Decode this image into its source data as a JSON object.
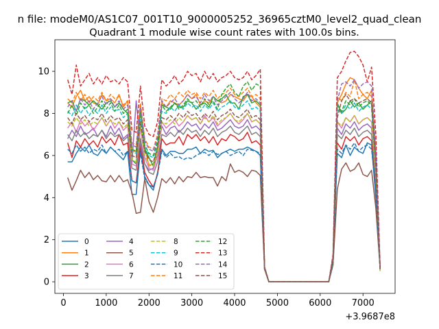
{
  "chart_data": {
    "type": "line",
    "suptitle": "n file: modeM0/AS1C07_001T10_9000005252_36965cztM0_level2_quad_clean",
    "title": "Quadrant 1 module wise count rates with 100.0s bins.",
    "xlabel": "",
    "ylabel": "",
    "x_offset_label": "+3.9687e8",
    "xlim": [
      -200,
      7750
    ],
    "ylim": [
      -0.55,
      11.5
    ],
    "x_ticks": [
      0,
      1000,
      2000,
      3000,
      4000,
      5000,
      6000,
      7000
    ],
    "y_ticks": [
      0,
      2,
      4,
      6,
      8,
      10
    ],
    "x_tick_labels": [
      "0",
      "1000",
      "2000",
      "3000",
      "4000",
      "5000",
      "6000",
      "7000"
    ],
    "y_tick_labels": [
      "0",
      "2",
      "4",
      "6",
      "8",
      "10"
    ],
    "legend_position": "lower-left",
    "legend_columns": 4,
    "x": [
      100,
      200,
      300,
      400,
      500,
      600,
      700,
      800,
      900,
      1000,
      1100,
      1200,
      1300,
      1400,
      1500,
      1600,
      1700,
      1800,
      1900,
      2000,
      2100,
      2200,
      2300,
      2400,
      2500,
      2600,
      2700,
      2800,
      2900,
      3000,
      3100,
      3200,
      3300,
      3400,
      3500,
      3600,
      3700,
      3800,
      3900,
      4000,
      4100,
      4200,
      4300,
      4400,
      4500,
      4600,
      4700,
      4800,
      6200,
      6300,
      6400,
      6500,
      6600,
      6700,
      6800,
      6900,
      7000,
      7100,
      7200,
      7300,
      7400
    ],
    "series": [
      {
        "name": "0",
        "color": "#1f77b4",
        "dash": "solid",
        "values": [
          5.7,
          5.7,
          6.1,
          6.4,
          6.2,
          6.5,
          6.1,
          6.0,
          6.3,
          6.1,
          6.4,
          6.2,
          6.0,
          5.8,
          6.2,
          4.15,
          4.15,
          6.3,
          5.0,
          4.6,
          4.35,
          5.2,
          6.3,
          6.0,
          6.2,
          6.2,
          6.1,
          6.1,
          6.3,
          6.3,
          6.4,
          6.1,
          6.3,
          6.2,
          6.25,
          5.9,
          6.1,
          6.2,
          6.3,
          6.2,
          6.3,
          6.3,
          6.4,
          6.3,
          6.2,
          6.0,
          0.6,
          0.0,
          0.0,
          1.0,
          6.1,
          5.9,
          6.5,
          6.0,
          6.4,
          6.2,
          6.1,
          6.6,
          6.5,
          4.0,
          0.6
        ]
      },
      {
        "name": "1",
        "color": "#ff7f0e",
        "dash": "solid",
        "values": [
          8.5,
          8.3,
          8.8,
          9.1,
          8.6,
          8.8,
          8.5,
          8.4,
          8.9,
          8.6,
          8.7,
          8.5,
          8.9,
          8.3,
          8.6,
          6.2,
          6.2,
          8.4,
          6.4,
          5.5,
          5.6,
          6.3,
          8.5,
          8.3,
          8.6,
          8.5,
          8.4,
          8.6,
          8.9,
          8.7,
          8.9,
          8.4,
          8.6,
          8.5,
          8.8,
          8.6,
          8.5,
          8.6,
          8.9,
          8.8,
          8.7,
          8.6,
          8.9,
          8.8,
          8.5,
          8.3,
          0.7,
          0.0,
          0.0,
          1.2,
          8.5,
          8.9,
          9.4,
          9.7,
          9.6,
          9.2,
          8.9,
          8.7,
          9.1,
          6.0,
          0.7
        ]
      },
      {
        "name": "2",
        "color": "#2ca02c",
        "dash": "solid",
        "values": [
          8.5,
          8.6,
          8.1,
          8.7,
          8.6,
          8.4,
          8.6,
          8.4,
          8.2,
          8.5,
          8.6,
          8.3,
          8.5,
          8.2,
          8.0,
          5.8,
          5.6,
          8.2,
          6.3,
          5.9,
          5.5,
          6.4,
          8.4,
          8.3,
          8.2,
          8.5,
          8.3,
          8.3,
          8.6,
          8.5,
          8.2,
          8.4,
          8.5,
          8.3,
          8.8,
          8.6,
          8.7,
          8.9,
          8.5,
          8.5,
          8.2,
          8.8,
          8.9,
          8.5,
          8.6,
          8.4,
          0.6,
          0.0,
          0.0,
          1.0,
          8.5,
          8.0,
          8.2,
          8.6,
          8.3,
          8.5,
          8.2,
          8.4,
          8.6,
          5.5,
          0.6
        ]
      },
      {
        "name": "3",
        "color": "#d62728",
        "dash": "solid",
        "values": [
          6.6,
          5.9,
          6.7,
          6.4,
          6.8,
          6.5,
          6.7,
          6.4,
          6.9,
          6.6,
          6.8,
          6.5,
          7.0,
          6.5,
          6.6,
          4.8,
          4.7,
          6.5,
          5.2,
          4.8,
          4.5,
          5.1,
          6.8,
          6.5,
          6.6,
          6.6,
          6.9,
          6.5,
          7.0,
          6.8,
          7.0,
          6.7,
          6.9,
          6.6,
          6.9,
          6.5,
          6.8,
          6.7,
          7.0,
          6.9,
          6.7,
          6.8,
          7.1,
          6.6,
          6.7,
          6.5,
          0.6,
          0.0,
          0.0,
          1.0,
          6.6,
          6.3,
          6.9,
          6.7,
          6.9,
          6.5,
          6.8,
          6.9,
          6.7,
          4.5,
          0.6
        ]
      },
      {
        "name": "4",
        "color": "#9467bd",
        "dash": "solid",
        "values": [
          6.8,
          7.2,
          6.9,
          7.4,
          7.0,
          7.1,
          7.3,
          6.9,
          7.2,
          6.9,
          7.4,
          7.0,
          7.3,
          6.8,
          7.0,
          5.6,
          8.6,
          6.5,
          5.6,
          5.3,
          5.4,
          6.2,
          7.4,
          7.0,
          7.3,
          7.4,
          7.1,
          7.3,
          7.6,
          7.4,
          7.5,
          7.2,
          7.5,
          7.3,
          7.6,
          7.2,
          7.3,
          7.5,
          7.7,
          7.4,
          7.3,
          7.4,
          7.7,
          7.3,
          7.4,
          7.2,
          0.6,
          0.0,
          0.0,
          1.0,
          7.3,
          7.0,
          7.5,
          7.3,
          7.6,
          7.2,
          7.4,
          7.5,
          7.3,
          5.0,
          0.6
        ]
      },
      {
        "name": "5",
        "color": "#8c564b",
        "dash": "solid",
        "values": [
          4.95,
          4.35,
          4.8,
          5.3,
          4.95,
          5.2,
          4.85,
          5.05,
          4.8,
          4.75,
          5.05,
          4.75,
          5.05,
          4.75,
          4.85,
          4.25,
          3.25,
          3.3,
          4.9,
          3.8,
          3.3,
          4.0,
          4.9,
          4.7,
          4.95,
          4.65,
          5.0,
          4.75,
          5.0,
          4.95,
          5.2,
          4.95,
          5.0,
          4.95,
          4.95,
          4.55,
          5.0,
          4.8,
          5.6,
          5.2,
          5.3,
          5.2,
          5.0,
          5.3,
          5.25,
          5.05,
          0.6,
          0.0,
          0.0,
          0.8,
          4.4,
          5.35,
          5.65,
          5.25,
          5.35,
          5.65,
          5.1,
          5.0,
          5.3,
          3.5,
          0.6
        ]
      },
      {
        "name": "6",
        "color": "#e377c2",
        "dash": "solid",
        "values": [
          7.3,
          7.6,
          7.1,
          7.7,
          7.4,
          7.6,
          7.2,
          7.5,
          7.8,
          7.4,
          7.7,
          7.3,
          7.6,
          7.2,
          7.4,
          5.6,
          5.5,
          7.3,
          5.9,
          5.4,
          5.3,
          6.0,
          7.6,
          7.3,
          7.5,
          7.7,
          7.4,
          7.6,
          7.9,
          7.7,
          7.8,
          7.5,
          7.9,
          7.6,
          7.8,
          7.4,
          7.6,
          7.8,
          8.0,
          7.7,
          7.5,
          7.7,
          8.0,
          7.6,
          7.7,
          7.5,
          0.6,
          0.0,
          0.0,
          1.0,
          7.6,
          7.3,
          7.8,
          7.6,
          7.9,
          7.5,
          7.7,
          7.8,
          7.6,
          5.2,
          0.6
        ]
      },
      {
        "name": "7",
        "color": "#7f7f7f",
        "dash": "solid",
        "values": [
          7.0,
          6.7,
          7.2,
          6.9,
          7.1,
          6.8,
          7.0,
          6.9,
          7.2,
          6.8,
          7.1,
          6.9,
          7.0,
          6.7,
          6.9,
          5.4,
          5.3,
          6.8,
          5.6,
          5.2,
          5.1,
          5.7,
          7.0,
          6.9,
          7.1,
          6.9,
          7.2,
          7.0,
          7.3,
          7.1,
          7.2,
          6.9,
          7.2,
          7.0,
          7.3,
          6.9,
          7.1,
          7.2,
          7.4,
          7.1,
          7.0,
          7.2,
          7.4,
          7.0,
          7.1,
          6.9,
          0.6,
          0.0,
          0.0,
          1.0,
          7.0,
          6.8,
          7.2,
          7.0,
          7.3,
          6.9,
          7.1,
          7.2,
          7.0,
          4.8,
          0.6
        ]
      },
      {
        "name": "8",
        "color": "#bcbd22",
        "dash": "dashed",
        "values": [
          7.6,
          7.4,
          7.8,
          7.5,
          7.7,
          7.4,
          7.6,
          7.5,
          7.8,
          7.4,
          7.7,
          7.5,
          7.6,
          7.3,
          7.5,
          5.8,
          5.7,
          7.4,
          6.0,
          5.6,
          5.5,
          6.2,
          7.6,
          7.5,
          7.7,
          7.5,
          7.8,
          7.6,
          7.9,
          7.7,
          7.8,
          7.5,
          7.8,
          7.6,
          7.9,
          7.5,
          7.7,
          7.8,
          8.0,
          7.7,
          7.6,
          7.8,
          8.0,
          7.6,
          7.7,
          7.5,
          0.6,
          0.0,
          0.0,
          1.0,
          7.6,
          7.4,
          7.8,
          7.6,
          7.9,
          7.5,
          7.7,
          7.8,
          7.6,
          5.2,
          0.5
        ]
      },
      {
        "name": "9",
        "color": "#17becf",
        "dash": "dashed",
        "values": [
          8.1,
          7.9,
          8.4,
          8.0,
          8.3,
          7.9,
          8.2,
          8.0,
          8.4,
          8.0,
          8.3,
          8.1,
          8.2,
          7.8,
          8.0,
          6.2,
          6.1,
          7.9,
          6.4,
          6.0,
          5.9,
          6.6,
          8.1,
          8.0,
          8.3,
          8.1,
          8.4,
          8.2,
          8.5,
          8.3,
          8.4,
          8.1,
          8.4,
          8.2,
          8.5,
          8.1,
          8.3,
          8.4,
          8.6,
          8.3,
          8.2,
          8.4,
          8.6,
          8.2,
          8.3,
          8.1,
          0.7,
          0.0,
          0.0,
          1.1,
          8.2,
          8.0,
          8.4,
          8.2,
          8.5,
          8.1,
          8.3,
          8.4,
          8.2,
          5.6,
          0.6
        ]
      },
      {
        "name": "10",
        "color": "#1f77b4",
        "dash": "dashed",
        "values": [
          6.3,
          6.1,
          6.5,
          6.2,
          6.4,
          6.1,
          6.3,
          6.2,
          6.5,
          6.1,
          6.4,
          6.2,
          6.3,
          6.0,
          6.2,
          4.8,
          4.7,
          6.1,
          4.9,
          4.6,
          4.5,
          5.1,
          6.2,
          5.9,
          6.1,
          5.9,
          5.95,
          5.8,
          5.9,
          5.85,
          6.0,
          6.1,
          6.15,
          6.0,
          6.2,
          6.05,
          6.1,
          6.2,
          6.0,
          6.1,
          6.2,
          6.0,
          6.3,
          6.25,
          6.2,
          6.1,
          0.6,
          0.0,
          0.0,
          0.9,
          6.3,
          6.1,
          6.5,
          6.3,
          6.6,
          6.2,
          6.4,
          6.5,
          6.3,
          4.3,
          0.6
        ]
      },
      {
        "name": "11",
        "color": "#ff7f0e",
        "dash": "dashed",
        "values": [
          8.7,
          8.5,
          9.0,
          8.6,
          8.9,
          8.5,
          8.8,
          8.6,
          9.0,
          8.6,
          8.9,
          8.7,
          8.8,
          8.4,
          8.6,
          6.6,
          6.5,
          8.5,
          6.8,
          6.4,
          6.3,
          7.0,
          8.7,
          8.6,
          8.9,
          8.7,
          9.0,
          8.8,
          9.1,
          8.9,
          9.0,
          8.7,
          9.0,
          8.8,
          9.1,
          8.7,
          8.9,
          9.0,
          9.2,
          8.9,
          8.8,
          9.0,
          9.2,
          8.8,
          8.9,
          8.7,
          0.7,
          0.0,
          0.0,
          1.2,
          8.8,
          8.6,
          9.0,
          8.8,
          9.6,
          8.7,
          8.9,
          9.0,
          8.8,
          6.0,
          0.6
        ]
      },
      {
        "name": "12",
        "color": "#2ca02c",
        "dash": "dashed",
        "values": [
          8.0,
          8.4,
          7.9,
          8.5,
          8.2,
          8.4,
          8.0,
          8.3,
          8.6,
          8.2,
          8.5,
          8.1,
          8.4,
          8.0,
          8.2,
          6.3,
          6.2,
          8.1,
          6.5,
          6.1,
          6.0,
          6.7,
          8.4,
          8.1,
          8.3,
          8.5,
          8.2,
          8.4,
          8.7,
          8.5,
          8.6,
          8.3,
          8.7,
          8.4,
          8.6,
          8.2,
          8.9,
          9.2,
          9.4,
          9.0,
          8.8,
          9.3,
          9.5,
          9.1,
          9.4,
          9.3,
          0.7,
          0.0,
          0.0,
          1.1,
          8.4,
          8.1,
          8.6,
          8.4,
          8.7,
          8.3,
          8.5,
          8.6,
          8.4,
          5.8,
          0.6
        ]
      },
      {
        "name": "13",
        "color": "#d62728",
        "dash": "dashed",
        "values": [
          9.6,
          8.9,
          10.3,
          9.3,
          9.6,
          9.9,
          9.4,
          9.7,
          9.4,
          9.8,
          9.5,
          9.6,
          9.4,
          9.7,
          9.5,
          7.2,
          7.1,
          9.3,
          7.4,
          7.0,
          6.9,
          7.6,
          9.6,
          9.3,
          9.5,
          9.8,
          9.4,
          9.6,
          10.0,
          9.8,
          9.9,
          9.5,
          10.0,
          9.6,
          9.9,
          9.5,
          9.7,
          9.8,
          10.0,
          9.7,
          9.6,
          9.7,
          10.0,
          9.6,
          9.8,
          10.1,
          0.7,
          0.0,
          0.0,
          1.3,
          9.7,
          10.0,
          10.5,
          10.9,
          10.95,
          10.7,
          10.3,
          9.5,
          10.2,
          7.0,
          0.7
        ]
      },
      {
        "name": "14",
        "color": "#9467bd",
        "dash": "dashed",
        "values": [
          8.3,
          8.6,
          8.1,
          8.7,
          8.4,
          8.6,
          8.2,
          8.5,
          8.8,
          8.4,
          8.7,
          8.3,
          8.6,
          8.2,
          8.4,
          6.5,
          6.4,
          8.3,
          6.7,
          6.3,
          6.2,
          6.9,
          8.6,
          8.3,
          8.5,
          8.7,
          8.4,
          8.6,
          8.9,
          8.7,
          8.8,
          8.5,
          8.9,
          8.6,
          8.8,
          8.4,
          8.6,
          8.8,
          9.0,
          8.7,
          8.5,
          8.7,
          9.0,
          8.6,
          8.7,
          8.5,
          0.7,
          0.0,
          0.0,
          1.2,
          8.6,
          9.4,
          9.5,
          9.3,
          9.6,
          9.2,
          9.4,
          9.5,
          9.3,
          6.2,
          0.6
        ]
      },
      {
        "name": "15",
        "color": "#8c564b",
        "dash": "dashed",
        "values": [
          7.8,
          7.5,
          8.0,
          7.7,
          7.9,
          7.6,
          7.8,
          7.7,
          8.0,
          7.6,
          7.9,
          7.7,
          7.8,
          7.5,
          7.7,
          6.0,
          5.9,
          7.6,
          6.2,
          5.8,
          5.7,
          6.4,
          7.8,
          7.7,
          7.9,
          7.7,
          8.0,
          7.8,
          8.1,
          7.9,
          8.0,
          7.7,
          8.0,
          7.8,
          8.1,
          7.7,
          7.9,
          8.0,
          8.2,
          7.9,
          7.8,
          8.0,
          8.2,
          7.8,
          7.9,
          7.7,
          0.6,
          0.0,
          0.0,
          1.1,
          7.8,
          8.6,
          8.9,
          8.6,
          8.7,
          8.5,
          8.6,
          8.7,
          8.5,
          5.5,
          0.6
        ]
      }
    ]
  }
}
